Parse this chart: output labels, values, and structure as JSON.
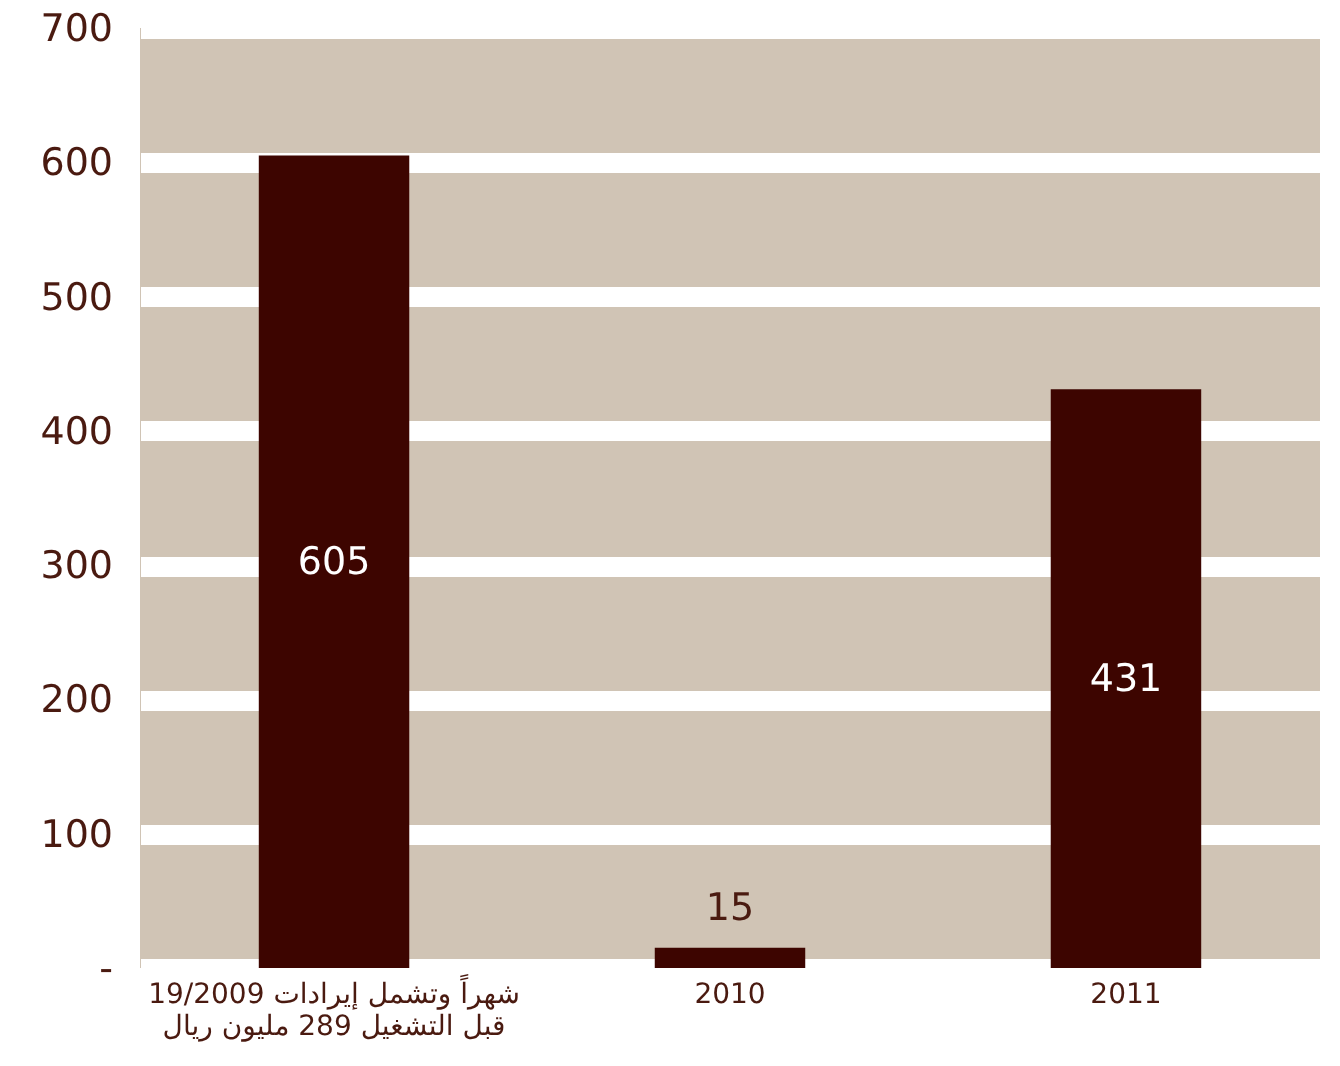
{
  "chart_data": {
    "type": "bar",
    "categories": [
      "19/2009 شهراً وتشمل إيرادات\nقبل التشغيل 289 مليون ريال",
      "2010",
      "2011"
    ],
    "values": [
      605,
      15,
      431
    ],
    "color": "#3d0500",
    "data_labels": true,
    "ylim": [
      0,
      700
    ],
    "yticks": [
      {
        "value": 0,
        "label": "-"
      },
      100,
      200,
      300,
      400,
      500,
      600,
      700
    ],
    "grid": "y"
  }
}
